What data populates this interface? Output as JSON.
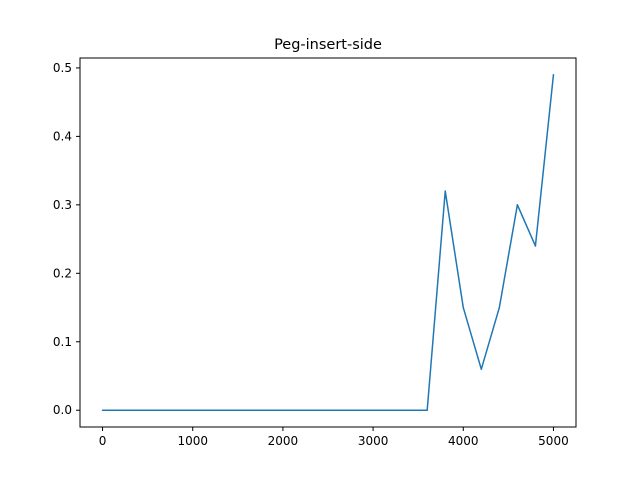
{
  "chart_data": {
    "type": "line",
    "title": "Peg-insert-side",
    "xlabel": "",
    "ylabel": "",
    "xlim": [
      -250,
      5250
    ],
    "ylim": [
      -0.0245,
      0.5145
    ],
    "x_ticks": [
      0,
      1000,
      2000,
      3000,
      4000,
      5000
    ],
    "y_ticks": [
      0.0,
      0.1,
      0.2,
      0.3,
      0.4,
      0.5
    ],
    "x_tick_labels": [
      "0",
      "1000",
      "2000",
      "3000",
      "4000",
      "5000"
    ],
    "y_tick_labels": [
      "0.0",
      "0.1",
      "0.2",
      "0.3",
      "0.4",
      "0.5"
    ],
    "grid": false,
    "series": [
      {
        "color": "#1f77b4",
        "x": [
          0,
          200,
          400,
          600,
          800,
          1000,
          1200,
          1400,
          1600,
          1800,
          2000,
          2200,
          2400,
          2600,
          2800,
          3000,
          3200,
          3400,
          3600,
          3800,
          4000,
          4200,
          4400,
          4600,
          4800,
          5000
        ],
        "y": [
          0,
          0,
          0,
          0,
          0,
          0,
          0,
          0,
          0,
          0,
          0,
          0,
          0,
          0,
          0,
          0,
          0,
          0,
          0,
          0.32,
          0.15,
          0.06,
          0.15,
          0.3,
          0.24,
          0.49
        ]
      }
    ]
  }
}
